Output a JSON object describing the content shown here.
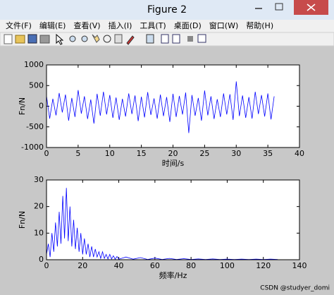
{
  "window": {
    "title": "Figure 2",
    "menu": [
      "文件(F)",
      "编辑(E)",
      "查看(V)",
      "插入(I)",
      "工具(T)",
      "桌面(D)",
      "窗口(W)",
      "帮助(H)"
    ],
    "watermark": "CSDN @studyer_domi"
  },
  "chart_data": [
    {
      "type": "line",
      "xlabel": "时间/s",
      "ylabel": "Fn/N",
      "color": "#0000ff",
      "x": [
        0,
        0.5,
        1,
        1.5,
        2,
        2.5,
        3,
        3.5,
        4,
        4.5,
        5,
        5.5,
        6,
        6.5,
        7,
        7.5,
        8,
        8.5,
        9,
        9.5,
        10,
        10.5,
        11,
        11.5,
        12,
        12.5,
        13,
        13.5,
        14,
        14.5,
        15,
        15.5,
        16,
        16.5,
        17,
        17.5,
        18,
        18.5,
        19,
        19.5,
        20,
        20.5,
        21,
        21.5,
        22,
        22.5,
        23,
        23.5,
        24,
        24.5,
        25,
        25.5,
        26,
        26.5,
        27,
        27.5,
        28,
        28.5,
        29,
        29.5,
        30,
        30.5,
        31,
        31.5,
        32,
        32.5,
        33,
        33.5,
        34,
        34.5,
        35,
        35.5,
        36
      ],
      "values": [
        250,
        -300,
        180,
        -220,
        320,
        -150,
        280,
        -350,
        200,
        -260,
        390,
        -180,
        240,
        -310,
        160,
        -420,
        300,
        -230,
        350,
        -200,
        270,
        -280,
        210,
        -330,
        180,
        -250,
        310,
        -190,
        260,
        -360,
        230,
        -270,
        340,
        -210,
        190,
        -300,
        280,
        -240,
        220,
        -380,
        300,
        -260,
        250,
        -200,
        330,
        -650,
        270,
        -230,
        200,
        -350,
        380,
        -220,
        240,
        -310,
        170,
        -260,
        310,
        -200,
        290,
        -330,
        600,
        -240,
        260,
        -280,
        220,
        -300,
        350,
        -190,
        270,
        -250,
        310,
        -320,
        240
      ],
      "xlim": [
        0,
        40
      ],
      "xticks": [
        0,
        5,
        10,
        15,
        20,
        25,
        30,
        35,
        40
      ],
      "ylim": [
        -1000,
        1000
      ],
      "yticks": [
        -1000,
        -500,
        0,
        500,
        1000
      ]
    },
    {
      "type": "line",
      "xlabel": "频率/Hz",
      "ylabel": "Fn/N",
      "color": "#0000ff",
      "x": [
        0,
        1,
        2,
        3,
        4,
        5,
        6,
        7,
        8,
        9,
        10,
        11,
        12,
        13,
        14,
        15,
        16,
        17,
        18,
        19,
        20,
        21,
        22,
        23,
        24,
        25,
        26,
        27,
        28,
        29,
        30,
        31,
        32,
        33,
        34,
        35,
        36,
        37,
        38,
        39,
        40,
        44,
        48,
        52,
        56,
        60,
        64,
        68,
        72,
        76,
        80,
        84,
        88,
        92,
        96,
        100,
        104,
        108,
        112,
        116,
        120,
        124,
        128
      ],
      "values": [
        2,
        6,
        1,
        10,
        3,
        14,
        5,
        18,
        6,
        24,
        8,
        27,
        7,
        20,
        5,
        15,
        4,
        12,
        3,
        10,
        2,
        8,
        2,
        6,
        1,
        5,
        1,
        4,
        1,
        3,
        0.5,
        3,
        0.5,
        2,
        0.3,
        2,
        0.3,
        1.5,
        0.2,
        1.2,
        0.2,
        1,
        0.2,
        0.8,
        0.1,
        0.6,
        0.1,
        0.5,
        0.1,
        0.4,
        0.1,
        0.3,
        0.1,
        0.3,
        0.1,
        0.2,
        0.1,
        0.2,
        0.1,
        0.2,
        0.1,
        0.2,
        0.1
      ],
      "xlim": [
        0,
        140
      ],
      "xticks": [
        0,
        20,
        40,
        60,
        80,
        100,
        120,
        140
      ],
      "ylim": [
        0,
        30
      ],
      "yticks": [
        0,
        10,
        20,
        30
      ]
    }
  ]
}
